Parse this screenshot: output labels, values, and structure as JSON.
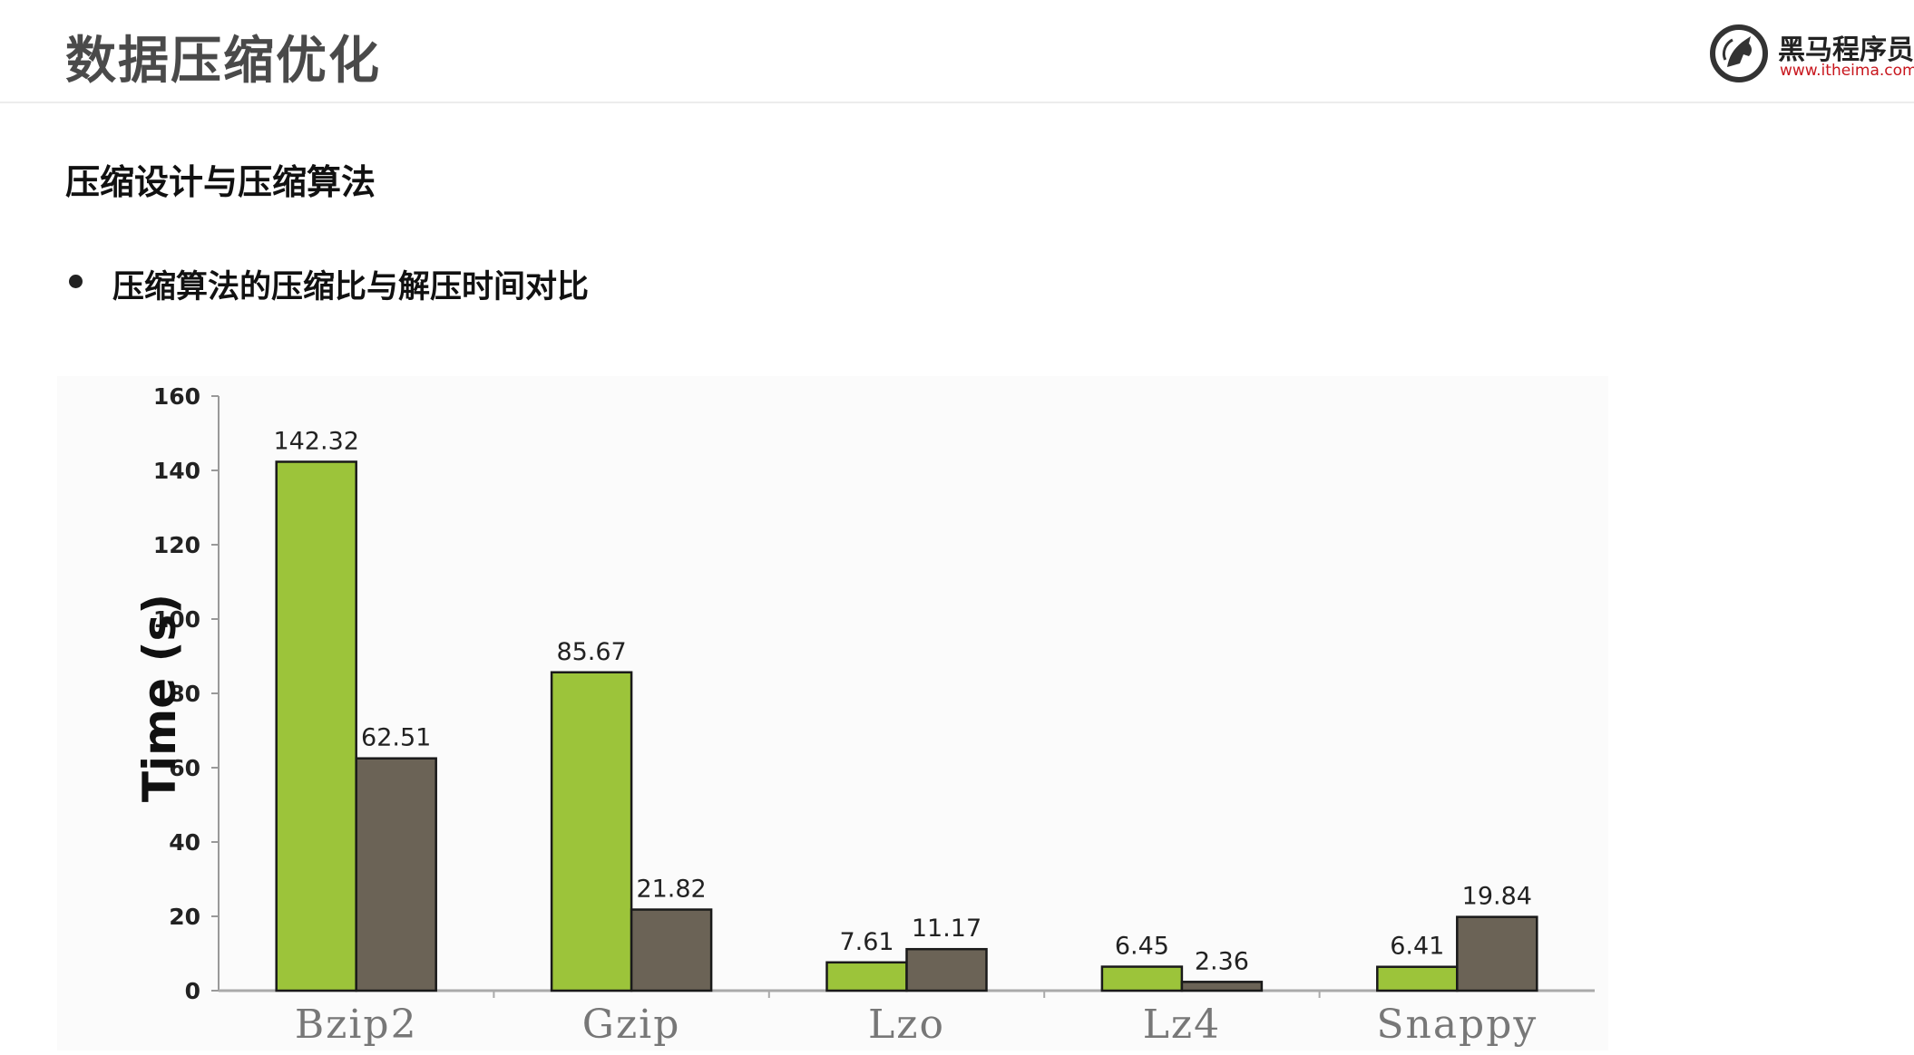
{
  "header": {
    "title": "数据压缩优化",
    "logo": {
      "icon": "horse-logo-icon",
      "name": "黑马程序员",
      "url_text": "www.itheima.com",
      "url_color": "#c8161d"
    }
  },
  "section": {
    "heading": "压缩设计与压缩算法",
    "bullet": "压缩算法的压缩比与解压时间对比"
  },
  "chart_data": {
    "type": "bar",
    "categories": [
      "Bzip2",
      "Gzip",
      "Lzo",
      "Lz4",
      "Snappy"
    ],
    "series": [
      {
        "color": "#9cc43a",
        "values": [
          142.32,
          85.67,
          7.61,
          6.45,
          6.41
        ]
      },
      {
        "color": "#6b6356",
        "values": [
          62.51,
          21.82,
          11.17,
          2.36,
          19.84
        ]
      }
    ],
    "ylabel": "Time (s)",
    "xlabel": "",
    "ylim": [
      0,
      160
    ],
    "yticks": [
      0,
      20,
      40,
      60,
      80,
      100,
      120,
      140,
      160
    ],
    "grid": false,
    "legend": "none",
    "value_labels": [
      [
        "142.32",
        "85.67",
        "7.61",
        "6.45",
        "6.41"
      ],
      [
        "62.51",
        "21.82",
        "11.17",
        "2.36",
        "19.84"
      ]
    ]
  }
}
